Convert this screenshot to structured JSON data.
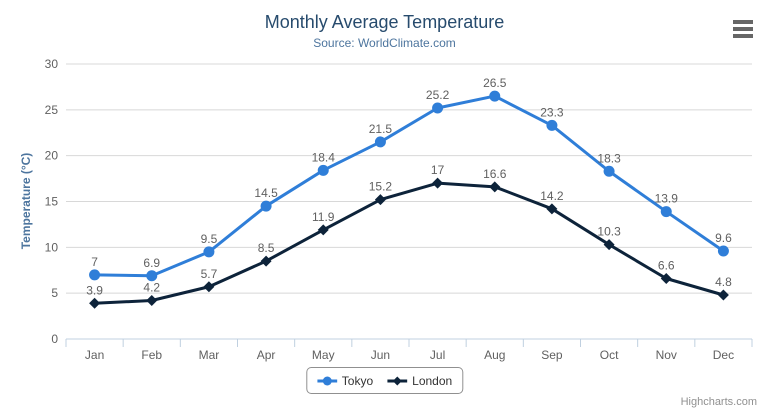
{
  "header": {
    "title": "Monthly Average Temperature",
    "subtitle": "Source: WorldClimate.com"
  },
  "credits_label": "Highcharts.com",
  "colors": {
    "title": "#274b6d",
    "subtitle": "#4d759e",
    "axis_title": "#4d759e",
    "axis_label": "#606060",
    "data_label": "#606060",
    "grid": "#d8d8d8",
    "axis_line": "#c0d0e0",
    "legend_text": "#333333",
    "legend_border": "#909090",
    "credits": "#909090",
    "menu_icon": "#666666",
    "tokyo": "#2f7ed8",
    "london": "#0d233a"
  },
  "chart_data": {
    "type": "line",
    "title": "Monthly Average Temperature",
    "subtitle": "Source: WorldClimate.com",
    "categories": [
      "Jan",
      "Feb",
      "Mar",
      "Apr",
      "May",
      "Jun",
      "Jul",
      "Aug",
      "Sep",
      "Oct",
      "Nov",
      "Dec"
    ],
    "series": [
      {
        "name": "Tokyo",
        "color": "#2f7ed8",
        "marker": "circle",
        "values": [
          7,
          6.9,
          9.5,
          14.5,
          18.4,
          21.5,
          25.2,
          26.5,
          23.3,
          18.3,
          13.9,
          9.6
        ]
      },
      {
        "name": "London",
        "color": "#0d233a",
        "marker": "diamond",
        "values": [
          3.9,
          4.2,
          5.7,
          8.5,
          11.9,
          15.2,
          17,
          16.6,
          14.2,
          10.3,
          6.6,
          4.8
        ]
      }
    ],
    "xlabel": "",
    "ylabel": "Temperature (°C)",
    "ylim": [
      0,
      30
    ],
    "yticks": [
      0,
      5,
      10,
      15,
      20,
      25,
      30
    ],
    "grid": true,
    "data_labels": true,
    "legend_position": "bottom"
  }
}
